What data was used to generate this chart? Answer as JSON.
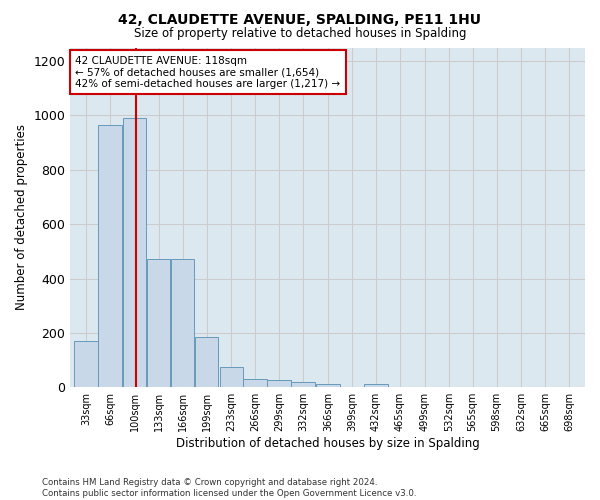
{
  "title": "42, CLAUDETTE AVENUE, SPALDING, PE11 1HU",
  "subtitle": "Size of property relative to detached houses in Spalding",
  "xlabel": "Distribution of detached houses by size in Spalding",
  "ylabel": "Number of detached properties",
  "bar_color": "#c8d8e8",
  "bar_edge_color": "#6699bb",
  "grid_color": "#cccccc",
  "bg_color": "#dce8f0",
  "fig_bg_color": "#ffffff",
  "red_line_color": "#cc0000",
  "property_size": 118,
  "annotation_text": "42 CLAUDETTE AVENUE: 118sqm\n← 57% of detached houses are smaller (1,654)\n42% of semi-detached houses are larger (1,217) →",
  "bins_left": [
    33,
    66,
    100,
    133,
    166,
    199,
    233,
    266,
    299,
    332,
    366,
    399,
    432,
    465,
    499,
    532,
    565,
    598,
    632,
    665,
    698
  ],
  "counts": [
    170,
    965,
    990,
    470,
    470,
    185,
    75,
    30,
    25,
    20,
    13,
    0,
    13,
    0,
    0,
    0,
    0,
    0,
    0,
    0,
    0
  ],
  "bin_width": 33,
  "ylim": [
    0,
    1250
  ],
  "yticks": [
    0,
    200,
    400,
    600,
    800,
    1000,
    1200
  ],
  "footer_text": "Contains HM Land Registry data © Crown copyright and database right 2024.\nContains public sector information licensed under the Open Government Licence v3.0."
}
